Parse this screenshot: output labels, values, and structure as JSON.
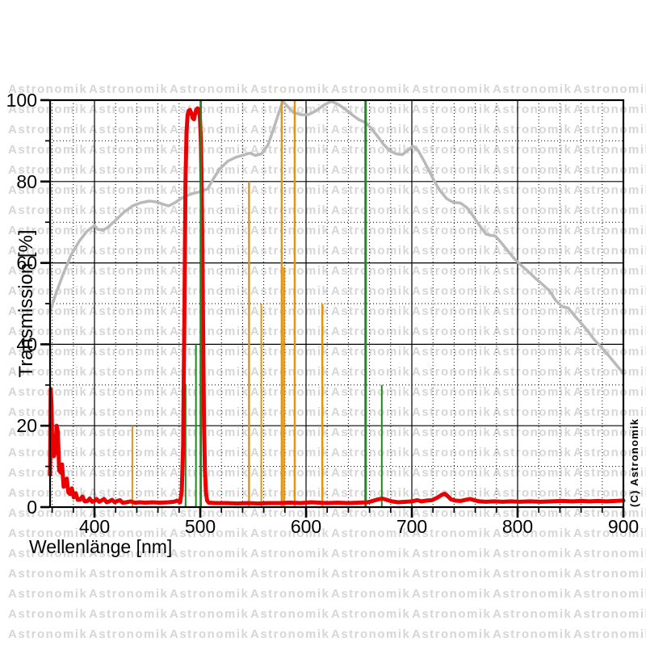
{
  "page": {
    "background": "#ffffff"
  },
  "watermark": {
    "text": "Astronomik",
    "color": "#d6d6d6"
  },
  "copyright_label": "(C) Astronomik",
  "axes": {
    "x_title": "Wellenlänge [nm]",
    "y_title": "Transmission [%]"
  },
  "chart_data": {
    "type": "line",
    "xlabel": "Wellenlänge [nm]",
    "ylabel": "Transmission [%]",
    "xlim": [
      358,
      900
    ],
    "ylim": [
      0,
      100
    ],
    "x_major_ticks": [
      400,
      500,
      600,
      700,
      800,
      900
    ],
    "x_minor_tick_step": 20,
    "y_major_ticks": [
      0,
      20,
      40,
      60,
      80,
      100
    ],
    "y_minor_tick_step": 10,
    "grid": {
      "major": "solid-black",
      "minor": "dotted-black"
    },
    "legend": "none",
    "series": [
      {
        "name": "filter-transmission-curve",
        "color": "#ea0000",
        "stroke_width": 5,
        "points": [
          [
            358,
            8
          ],
          [
            358.6,
            29
          ],
          [
            359.4,
            25
          ],
          [
            360.2,
            13
          ],
          [
            361.6,
            12.5
          ],
          [
            362.9,
            13.5
          ],
          [
            364.2,
            20
          ],
          [
            365.3,
            18.5
          ],
          [
            366.6,
            9
          ],
          [
            368,
            8.5
          ],
          [
            369.3,
            10.5
          ],
          [
            370.8,
            5
          ],
          [
            372.3,
            5.2
          ],
          [
            373.8,
            7
          ],
          [
            375.3,
            3.6
          ],
          [
            377,
            3.2
          ],
          [
            378.6,
            4.6
          ],
          [
            380.4,
            2.4
          ],
          [
            382.3,
            3.4
          ],
          [
            384.2,
            1.8
          ],
          [
            386.4,
            1.8
          ],
          [
            388.6,
            2.6
          ],
          [
            390.8,
            1.4
          ],
          [
            393.5,
            1.5
          ],
          [
            395.5,
            2.1
          ],
          [
            397.8,
            1.3
          ],
          [
            399.9,
            1.5
          ],
          [
            402,
            2
          ],
          [
            404.3,
            1.3
          ],
          [
            406.6,
            1.6
          ],
          [
            408.9,
            2
          ],
          [
            411.5,
            1.2
          ],
          [
            414.1,
            1.4
          ],
          [
            416.6,
            1.8
          ],
          [
            419.1,
            1.2
          ],
          [
            421.6,
            1.5
          ],
          [
            424.1,
            1.7
          ],
          [
            426.6,
            1.1
          ],
          [
            430,
            1.2
          ],
          [
            434,
            1.4
          ],
          [
            438,
            1.1
          ],
          [
            443,
            1.2
          ],
          [
            448,
            1.1
          ],
          [
            455,
            1.2
          ],
          [
            462,
            1.1
          ],
          [
            470,
            1.2
          ],
          [
            475,
            1.3
          ],
          [
            478,
            1.6
          ],
          [
            481,
            1.2
          ],
          [
            482.5,
            4
          ],
          [
            483.8,
            15
          ],
          [
            485,
            48
          ],
          [
            486,
            80
          ],
          [
            487,
            92
          ],
          [
            488,
            96.3
          ],
          [
            489,
            97.4
          ],
          [
            490.2,
            97.6
          ],
          [
            491.5,
            96.8
          ],
          [
            492.8,
            95.6
          ],
          [
            494,
            95.3
          ],
          [
            495,
            96.5
          ],
          [
            496.2,
            97.6
          ],
          [
            497.5,
            98
          ],
          [
            498.6,
            97.6
          ],
          [
            499.6,
            96
          ],
          [
            500.6,
            90
          ],
          [
            501.4,
            78
          ],
          [
            502.2,
            58
          ],
          [
            502.9,
            38
          ],
          [
            503.6,
            20
          ],
          [
            504.4,
            9
          ],
          [
            505.4,
            3.5
          ],
          [
            506.5,
            1.6
          ],
          [
            508,
            1.1
          ],
          [
            515,
            1
          ],
          [
            525,
            1
          ],
          [
            535,
            0.9
          ],
          [
            545,
            1
          ],
          [
            555,
            0.9
          ],
          [
            565,
            1
          ],
          [
            575,
            1
          ],
          [
            585,
            1.1
          ],
          [
            595,
            1
          ],
          [
            605,
            1.2
          ],
          [
            612,
            1.1
          ],
          [
            620,
            1
          ],
          [
            630,
            1.1
          ],
          [
            640,
            1
          ],
          [
            650,
            1.1
          ],
          [
            658,
            1.2
          ],
          [
            663,
            1.5
          ],
          [
            668,
            1.9
          ],
          [
            672,
            2.1
          ],
          [
            676,
            1.8
          ],
          [
            681,
            1.4
          ],
          [
            687,
            1.2
          ],
          [
            694,
            1.3
          ],
          [
            700,
            1.4
          ],
          [
            705,
            1.7
          ],
          [
            709,
            1.4
          ],
          [
            714,
            1.6
          ],
          [
            719,
            1.7
          ],
          [
            724,
            2.3
          ],
          [
            728,
            3
          ],
          [
            731,
            3.3
          ],
          [
            734,
            2.7
          ],
          [
            737,
            1.9
          ],
          [
            741,
            1.6
          ],
          [
            746,
            1.5
          ],
          [
            751,
            1.8
          ],
          [
            755,
            2
          ],
          [
            759,
            1.7
          ],
          [
            764,
            1.4
          ],
          [
            770,
            1.3
          ],
          [
            778,
            1.4
          ],
          [
            786,
            1.3
          ],
          [
            794,
            1.4
          ],
          [
            802,
            1.3
          ],
          [
            812,
            1.4
          ],
          [
            822,
            1.3
          ],
          [
            832,
            1.4
          ],
          [
            842,
            1.5
          ],
          [
            852,
            1.4
          ],
          [
            860,
            1.5
          ],
          [
            868,
            1.4
          ],
          [
            876,
            1.5
          ],
          [
            884,
            1.4
          ],
          [
            892,
            1.5
          ],
          [
            900,
            1.6
          ]
        ]
      },
      {
        "name": "reference-response-curve",
        "color": "#b9b9b9",
        "stroke_width": 3.5,
        "points": [
          [
            358,
            48
          ],
          [
            363,
            52
          ],
          [
            370,
            57
          ],
          [
            378,
            62
          ],
          [
            386,
            65.5
          ],
          [
            393,
            67.8
          ],
          [
            400,
            69.2
          ],
          [
            403,
            68.3
          ],
          [
            408,
            68
          ],
          [
            413,
            68.8
          ],
          [
            420,
            70.5
          ],
          [
            428,
            72.5
          ],
          [
            436,
            74
          ],
          [
            444,
            74.8
          ],
          [
            452,
            75.2
          ],
          [
            458,
            75
          ],
          [
            464,
            74.5
          ],
          [
            470,
            74
          ],
          [
            476,
            74.8
          ],
          [
            483,
            76
          ],
          [
            492,
            77
          ],
          [
            500,
            77.5
          ],
          [
            507,
            78.2
          ],
          [
            512,
            80.5
          ],
          [
            518,
            83
          ],
          [
            526,
            85
          ],
          [
            534,
            86
          ],
          [
            541,
            86.5
          ],
          [
            547,
            87
          ],
          [
            552,
            86.4
          ],
          [
            558,
            86.8
          ],
          [
            564,
            89
          ],
          [
            570,
            93.5
          ],
          [
            575,
            97.5
          ],
          [
            578,
            99.7
          ],
          [
            582,
            98.6
          ],
          [
            588,
            97
          ],
          [
            595,
            96.4
          ],
          [
            602,
            96.4
          ],
          [
            609,
            97.3
          ],
          [
            617,
            98.8
          ],
          [
            624,
            99.7
          ],
          [
            630,
            99
          ],
          [
            637,
            97.8
          ],
          [
            644,
            96.3
          ],
          [
            650,
            95.2
          ],
          [
            656,
            94.5
          ],
          [
            661,
            93.3
          ],
          [
            667,
            91.3
          ],
          [
            673,
            89.2
          ],
          [
            679,
            87.6
          ],
          [
            685,
            86.8
          ],
          [
            691,
            86.6
          ],
          [
            697,
            87.8
          ],
          [
            701,
            88.7
          ],
          [
            706,
            87.6
          ],
          [
            711,
            85.3
          ],
          [
            716,
            82.8
          ],
          [
            721,
            80.2
          ],
          [
            727,
            77.6
          ],
          [
            733,
            75.8
          ],
          [
            739,
            74.9
          ],
          [
            746,
            74.7
          ],
          [
            752,
            73.6
          ],
          [
            758,
            71.5
          ],
          [
            764,
            69.2
          ],
          [
            770,
            67.1
          ],
          [
            774,
            66.8
          ],
          [
            779,
            66.6
          ],
          [
            785,
            64.8
          ],
          [
            791,
            62.9
          ],
          [
            797,
            61
          ],
          [
            803,
            59.5
          ],
          [
            810,
            57.9
          ],
          [
            817,
            56.2
          ],
          [
            824,
            54.6
          ],
          [
            830,
            53.2
          ],
          [
            836,
            50.8
          ],
          [
            842,
            49.3
          ],
          [
            848,
            48.9
          ],
          [
            854,
            47
          ],
          [
            860,
            45.2
          ],
          [
            866,
            43.4
          ],
          [
            872,
            41.3
          ],
          [
            878,
            39.6
          ],
          [
            884,
            37.9
          ],
          [
            890,
            36
          ],
          [
            895,
            34.4
          ],
          [
            900,
            32.9
          ]
        ]
      }
    ],
    "emission_lines": [
      {
        "name": "green-line-486",
        "nm": 486.1,
        "height_pct": 30,
        "color": "#1e8a1e",
        "stroke_width": 2,
        "overlay": false
      },
      {
        "name": "green-line-496",
        "nm": 495.9,
        "height_pct": 40,
        "color": "#1e8a1e",
        "stroke_width": 2,
        "overlay": false
      },
      {
        "name": "green-line-501",
        "nm": 500.7,
        "height_pct": 100,
        "color": "#1e8a1e",
        "stroke_width": 2.2,
        "overlay": true
      },
      {
        "name": "green-line-656",
        "nm": 656.3,
        "height_pct": 100,
        "color": "#1e8a1e",
        "stroke_width": 3,
        "overlay": false
      },
      {
        "name": "green-line-672",
        "nm": 671.6,
        "height_pct": 30,
        "color": "#1e8a1e",
        "stroke_width": 2,
        "overlay": false
      },
      {
        "name": "orange-line-436",
        "nm": 435.8,
        "height_pct": 20,
        "color": "#e5940e",
        "stroke_width": 2,
        "overlay": false
      },
      {
        "name": "orange-line-546",
        "nm": 546.1,
        "height_pct": 80,
        "color": "#e5940e",
        "stroke_width": 2.5,
        "overlay": false
      },
      {
        "name": "orange-line-558",
        "nm": 557.7,
        "height_pct": 50,
        "color": "#e5940e",
        "stroke_width": 2,
        "overlay": false
      },
      {
        "name": "orange-line-577",
        "nm": 577.0,
        "height_pct": 100,
        "color": "#e5940e",
        "stroke_width": 2.5,
        "overlay": false
      },
      {
        "name": "orange-line-579",
        "nm": 579.1,
        "height_pct": 59,
        "color": "#e5940e",
        "stroke_width": 2.5,
        "overlay": false
      },
      {
        "name": "orange-line-589",
        "nm": 589.3,
        "height_pct": 100,
        "color": "#e5940e",
        "stroke_width": 2.5,
        "overlay": false
      },
      {
        "name": "orange-line-615",
        "nm": 615.4,
        "height_pct": 50,
        "color": "#e5940e",
        "stroke_width": 2.5,
        "overlay": false
      }
    ],
    "annotations": {
      "copyright": "(C) Astronomik",
      "watermark": "Astronomik"
    }
  }
}
